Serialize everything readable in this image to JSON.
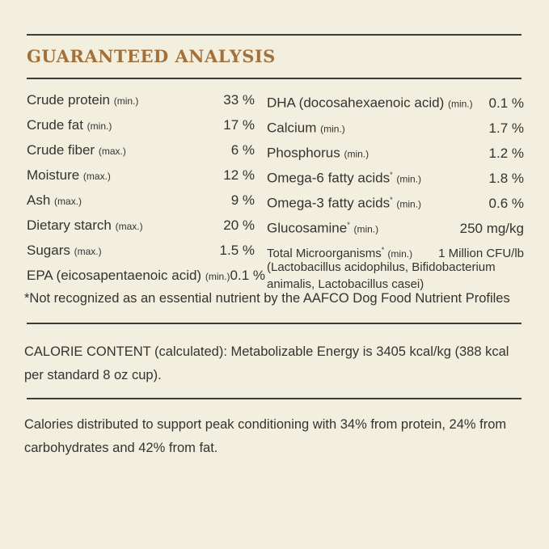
{
  "title": "GUARANTEED ANALYSIS",
  "left_rows": [
    {
      "name": "Crude protein",
      "qualifier": "(min.)",
      "value": "33 %"
    },
    {
      "name": "Crude fat",
      "qualifier": "(min.)",
      "value": "17 %"
    },
    {
      "name": "Crude fiber",
      "qualifier": "(max.)",
      "value": "6 %"
    },
    {
      "name": "Moisture",
      "qualifier": "(max.)",
      "value": "12 %"
    },
    {
      "name": "Ash",
      "qualifier": "(max.)",
      "value": "9 %"
    },
    {
      "name": "Dietary starch",
      "qualifier": "(max.)",
      "value": "20 %"
    },
    {
      "name": "Sugars",
      "qualifier": "(max.)",
      "value": "1.5 %"
    },
    {
      "name": "EPA (eicosapentaenoic acid)",
      "qualifier": "(min.)",
      "value": "0.1 %"
    }
  ],
  "right_rows": [
    {
      "name": "DHA (docosahexaenoic acid)",
      "star": "",
      "qualifier": "(min.)",
      "value": "0.1 %"
    },
    {
      "name": "Calcium",
      "star": "",
      "qualifier": "(min.)",
      "value": "1.7 %"
    },
    {
      "name": "Phosphorus",
      "star": "",
      "qualifier": "(min.)",
      "value": "1.2 %"
    },
    {
      "name": "Omega-6 fatty acids",
      "star": "*",
      "qualifier": "(min.)",
      "value": "1.8 %"
    },
    {
      "name": "Omega-3 fatty acids",
      "star": "*",
      "qualifier": "(min.)",
      "value": "0.6 %"
    },
    {
      "name": "Glucosamine",
      "star": "*",
      "qualifier": "(min.)",
      "value": "250 mg/kg"
    },
    {
      "name": "Total Microorganisms",
      "star": "*",
      "qualifier": "(min.)",
      "value": "1 Million CFU/lb"
    }
  ],
  "microorganisms_detail": "(Lactobacillus acidophilus, Bifidobacterium animalis, Lactobacillus casei)",
  "footnote": "*Not recognized as an essential nutrient by the AAFCO Dog Food Nutrient Profiles",
  "calorie_content": "CALORIE CONTENT (calculated): Metabolizable Energy is 3405 kcal/kg (388 kcal per standard 8 oz cup).",
  "calorie_distribution": "Calories distributed to support peak conditioning with 34% from protein, 24% from carbohydrates and 42% from fat."
}
